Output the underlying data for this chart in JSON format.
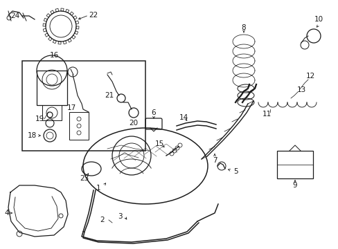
{
  "background_color": "#ffffff",
  "line_color": "#1a1a1a",
  "figsize": [
    4.89,
    3.6
  ],
  "dpi": 100,
  "xlim": [
    0,
    489
  ],
  "ylim": [
    360,
    0
  ]
}
